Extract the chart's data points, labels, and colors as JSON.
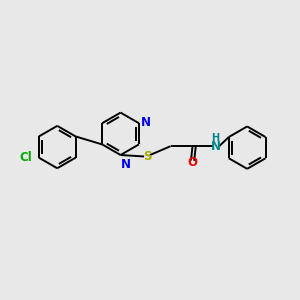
{
  "bg_color": "#e8e8e8",
  "bond_color": "#000000",
  "N_color": "#0000ee",
  "S_color": "#aaaa00",
  "O_color": "#ee0000",
  "Cl_color": "#00aa00",
  "NH_color": "#008888",
  "lw": 1.4,
  "fs": 8.5,
  "xlim": [
    0,
    10
  ],
  "ylim": [
    0,
    10
  ]
}
